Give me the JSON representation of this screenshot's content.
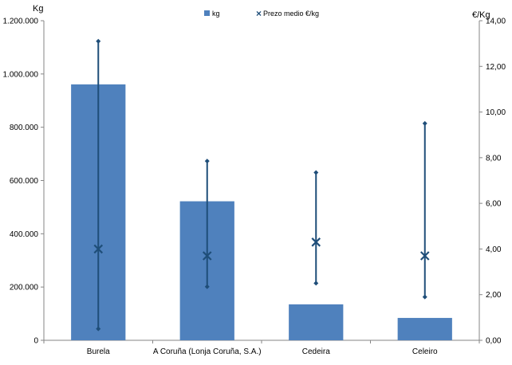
{
  "chart_data": {
    "type": "bar",
    "categories": [
      "Burela",
      "A Coruña (Lonja Coruña, S.A.)",
      "Cedeira",
      "Celeiro"
    ],
    "series": [
      {
        "name": "kg",
        "type": "bar",
        "axis": "left",
        "color": "#4f81bd",
        "values": [
          961000,
          522000,
          135000,
          84000
        ]
      },
      {
        "name": "Prezo medio €/kg",
        "type": "scatter",
        "axis": "right",
        "marker": "x",
        "color": "#1f4e79",
        "values": [
          4.0,
          3.7,
          4.3,
          3.7
        ],
        "min": [
          0.5,
          2.35,
          2.5,
          1.9
        ],
        "max": [
          13.1,
          7.85,
          7.35,
          9.5
        ]
      }
    ],
    "y_left": {
      "label": "Kg",
      "range": [
        0,
        1200000
      ],
      "ticks": [
        "0",
        "200.000",
        "400.000",
        "600.000",
        "800.000",
        "1.000.000",
        "1.200.000"
      ]
    },
    "y_right": {
      "label": "€/Kg",
      "range": [
        0,
        14
      ],
      "ticks": [
        "0,00",
        "2,00",
        "4,00",
        "6,00",
        "8,00",
        "10,00",
        "12,00",
        "14,00"
      ]
    },
    "grid": false,
    "legend_position": "top-center"
  }
}
